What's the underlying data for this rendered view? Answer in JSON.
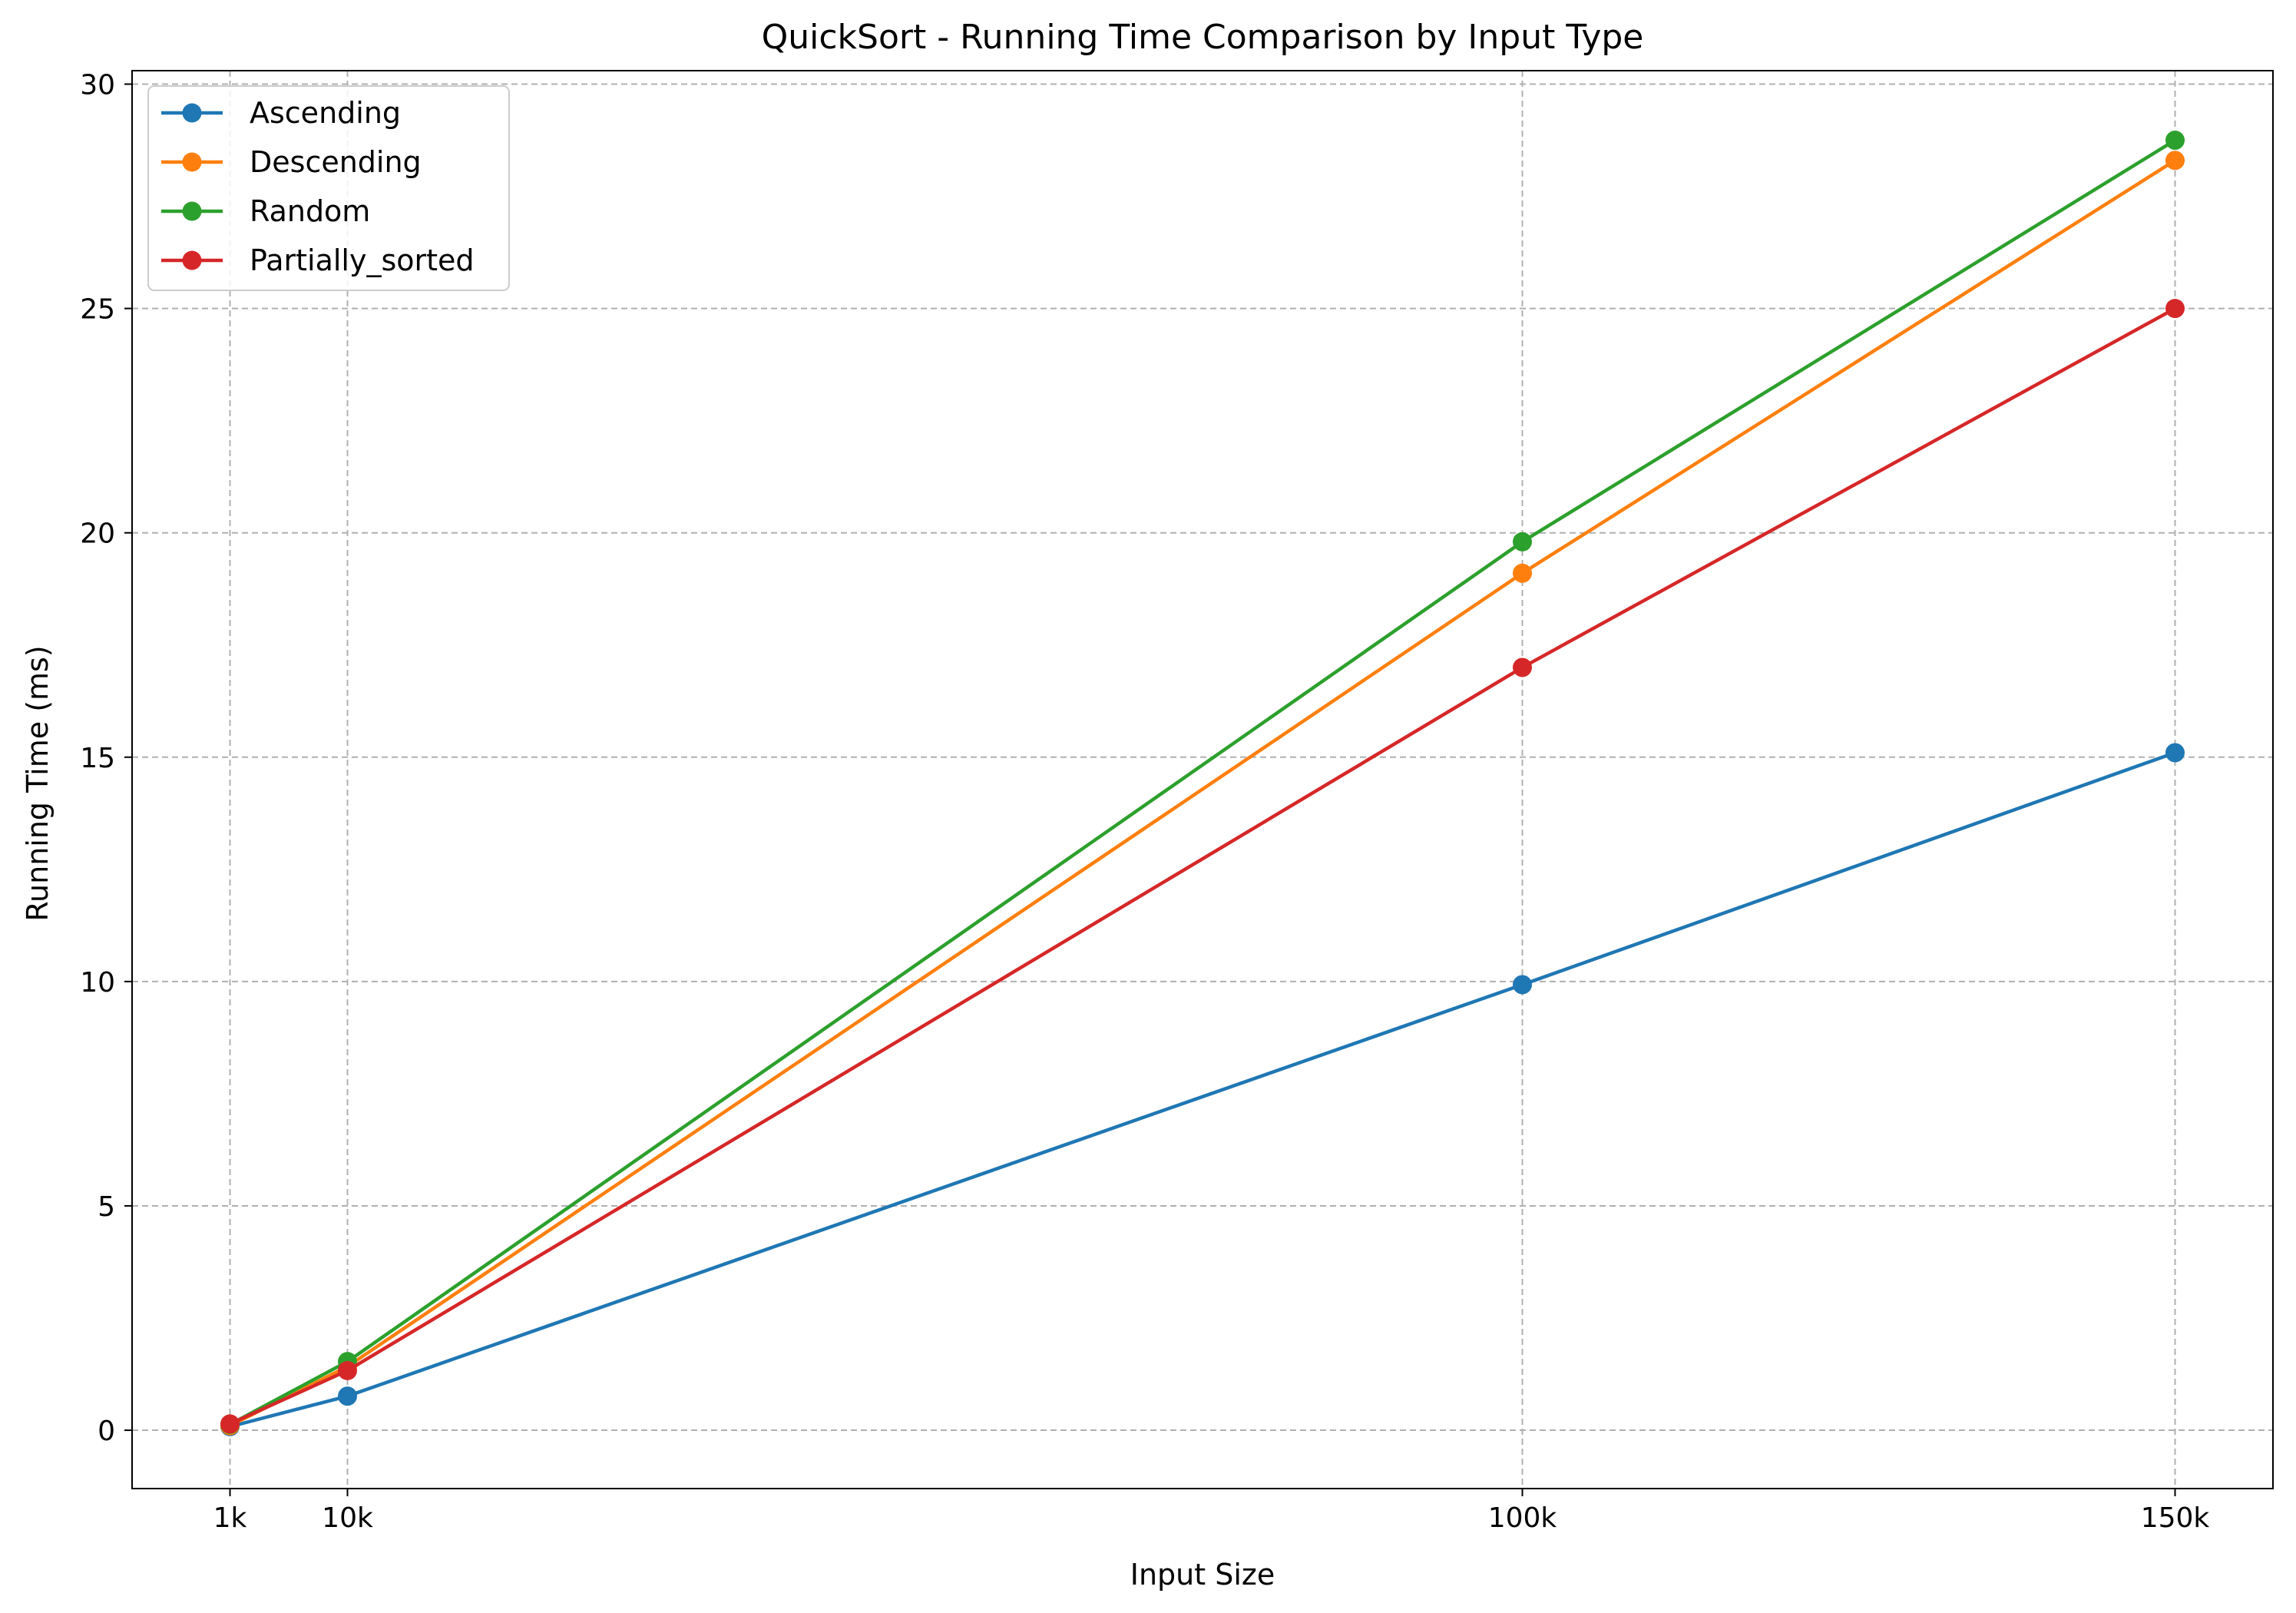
{
  "chart_data": {
    "type": "line",
    "title": "QuickSort - Running Time Comparison by Input Type",
    "xlabel": "Input Size",
    "ylabel": "Running Time (ms)",
    "x": [
      1000,
      10000,
      100000,
      150000
    ],
    "x_tick_labels": [
      "1k",
      "10k",
      "100k",
      "150k"
    ],
    "xlim": [
      -6500,
      157500
    ],
    "ylim": [
      -1.3,
      30.3
    ],
    "y_ticks": [
      0,
      5,
      10,
      15,
      20,
      25,
      30
    ],
    "grid": true,
    "legend_position": "top-left",
    "series": [
      {
        "name": "Ascending",
        "color": "#1f77b4",
        "values": [
          0.08,
          0.76,
          9.93,
          15.1
        ]
      },
      {
        "name": "Descending",
        "color": "#ff7f0e",
        "values": [
          0.1,
          1.42,
          19.1,
          28.3
        ]
      },
      {
        "name": "Random",
        "color": "#2ca02c",
        "values": [
          0.13,
          1.53,
          19.8,
          28.75
        ]
      },
      {
        "name": "Partially_sorted",
        "color": "#d62728",
        "values": [
          0.14,
          1.33,
          17.0,
          25.0
        ]
      }
    ]
  }
}
